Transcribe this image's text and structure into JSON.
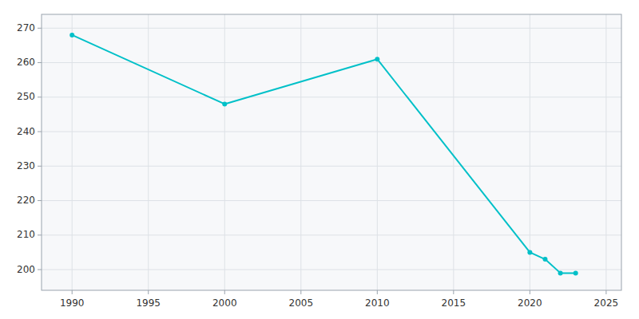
{
  "chart_data": {
    "type": "line",
    "x": [
      1990,
      2000,
      2010,
      2020,
      2021,
      2022,
      2023
    ],
    "values": [
      268,
      248,
      261,
      205,
      203,
      199,
      199
    ],
    "color": "#00c0c8",
    "marker": "circle",
    "xlim": [
      1988,
      2026
    ],
    "ylim": [
      194,
      274
    ],
    "xticks": [
      1990,
      1995,
      2000,
      2005,
      2010,
      2015,
      2020,
      2025
    ],
    "yticks": [
      200,
      210,
      220,
      230,
      240,
      250,
      260,
      270
    ],
    "grid": true
  }
}
